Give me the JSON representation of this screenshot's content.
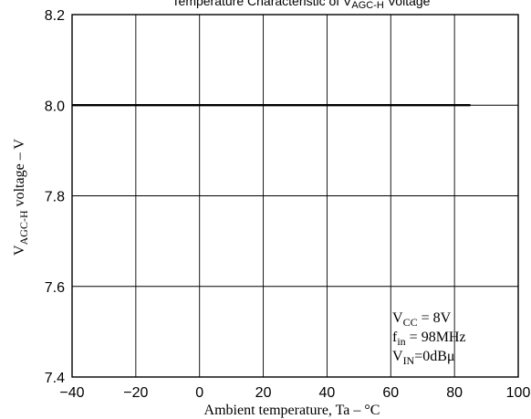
{
  "chart_data": {
    "type": "line",
    "title_main": "Temperature Characteristic of V",
    "title_sub": "AGC-H",
    "title_tail": " Voltage",
    "xlabel": "Ambient temperature, Ta   –   °C",
    "ylabel_main": "V",
    "ylabel_sub": "AGC-H",
    "ylabel_tail": " voltage  –  V",
    "xlim": [
      -40,
      100
    ],
    "ylim": [
      7.4,
      8.2
    ],
    "x_ticks": [
      -40,
      -20,
      0,
      20,
      40,
      60,
      80,
      100
    ],
    "x_tick_labels": [
      "−40",
      "−20",
      "0",
      "20",
      "40",
      "60",
      "80",
      "100"
    ],
    "y_ticks": [
      7.4,
      7.6,
      7.8,
      8.0,
      8.2
    ],
    "y_tick_labels": [
      "7.4",
      "7.6",
      "7.8",
      "8.0",
      "8.2"
    ],
    "grid": true,
    "series": [
      {
        "x": [
          -40,
          -20,
          0,
          20,
          40,
          60,
          85
        ],
        "y": [
          8.0,
          8.0,
          8.0,
          8.0,
          8.0,
          8.0,
          8.0
        ]
      }
    ],
    "annotations": [
      {
        "main": "V",
        "sub": "CC",
        "tail": " = 8V"
      },
      {
        "main": "f",
        "sub": "in",
        "tail": " = 98MHz"
      },
      {
        "main": "V",
        "sub": "IN",
        "tail": "=0dBμ"
      }
    ],
    "colors": {
      "line": "#000000",
      "grid": "#000000",
      "background": "#ffffff"
    }
  }
}
